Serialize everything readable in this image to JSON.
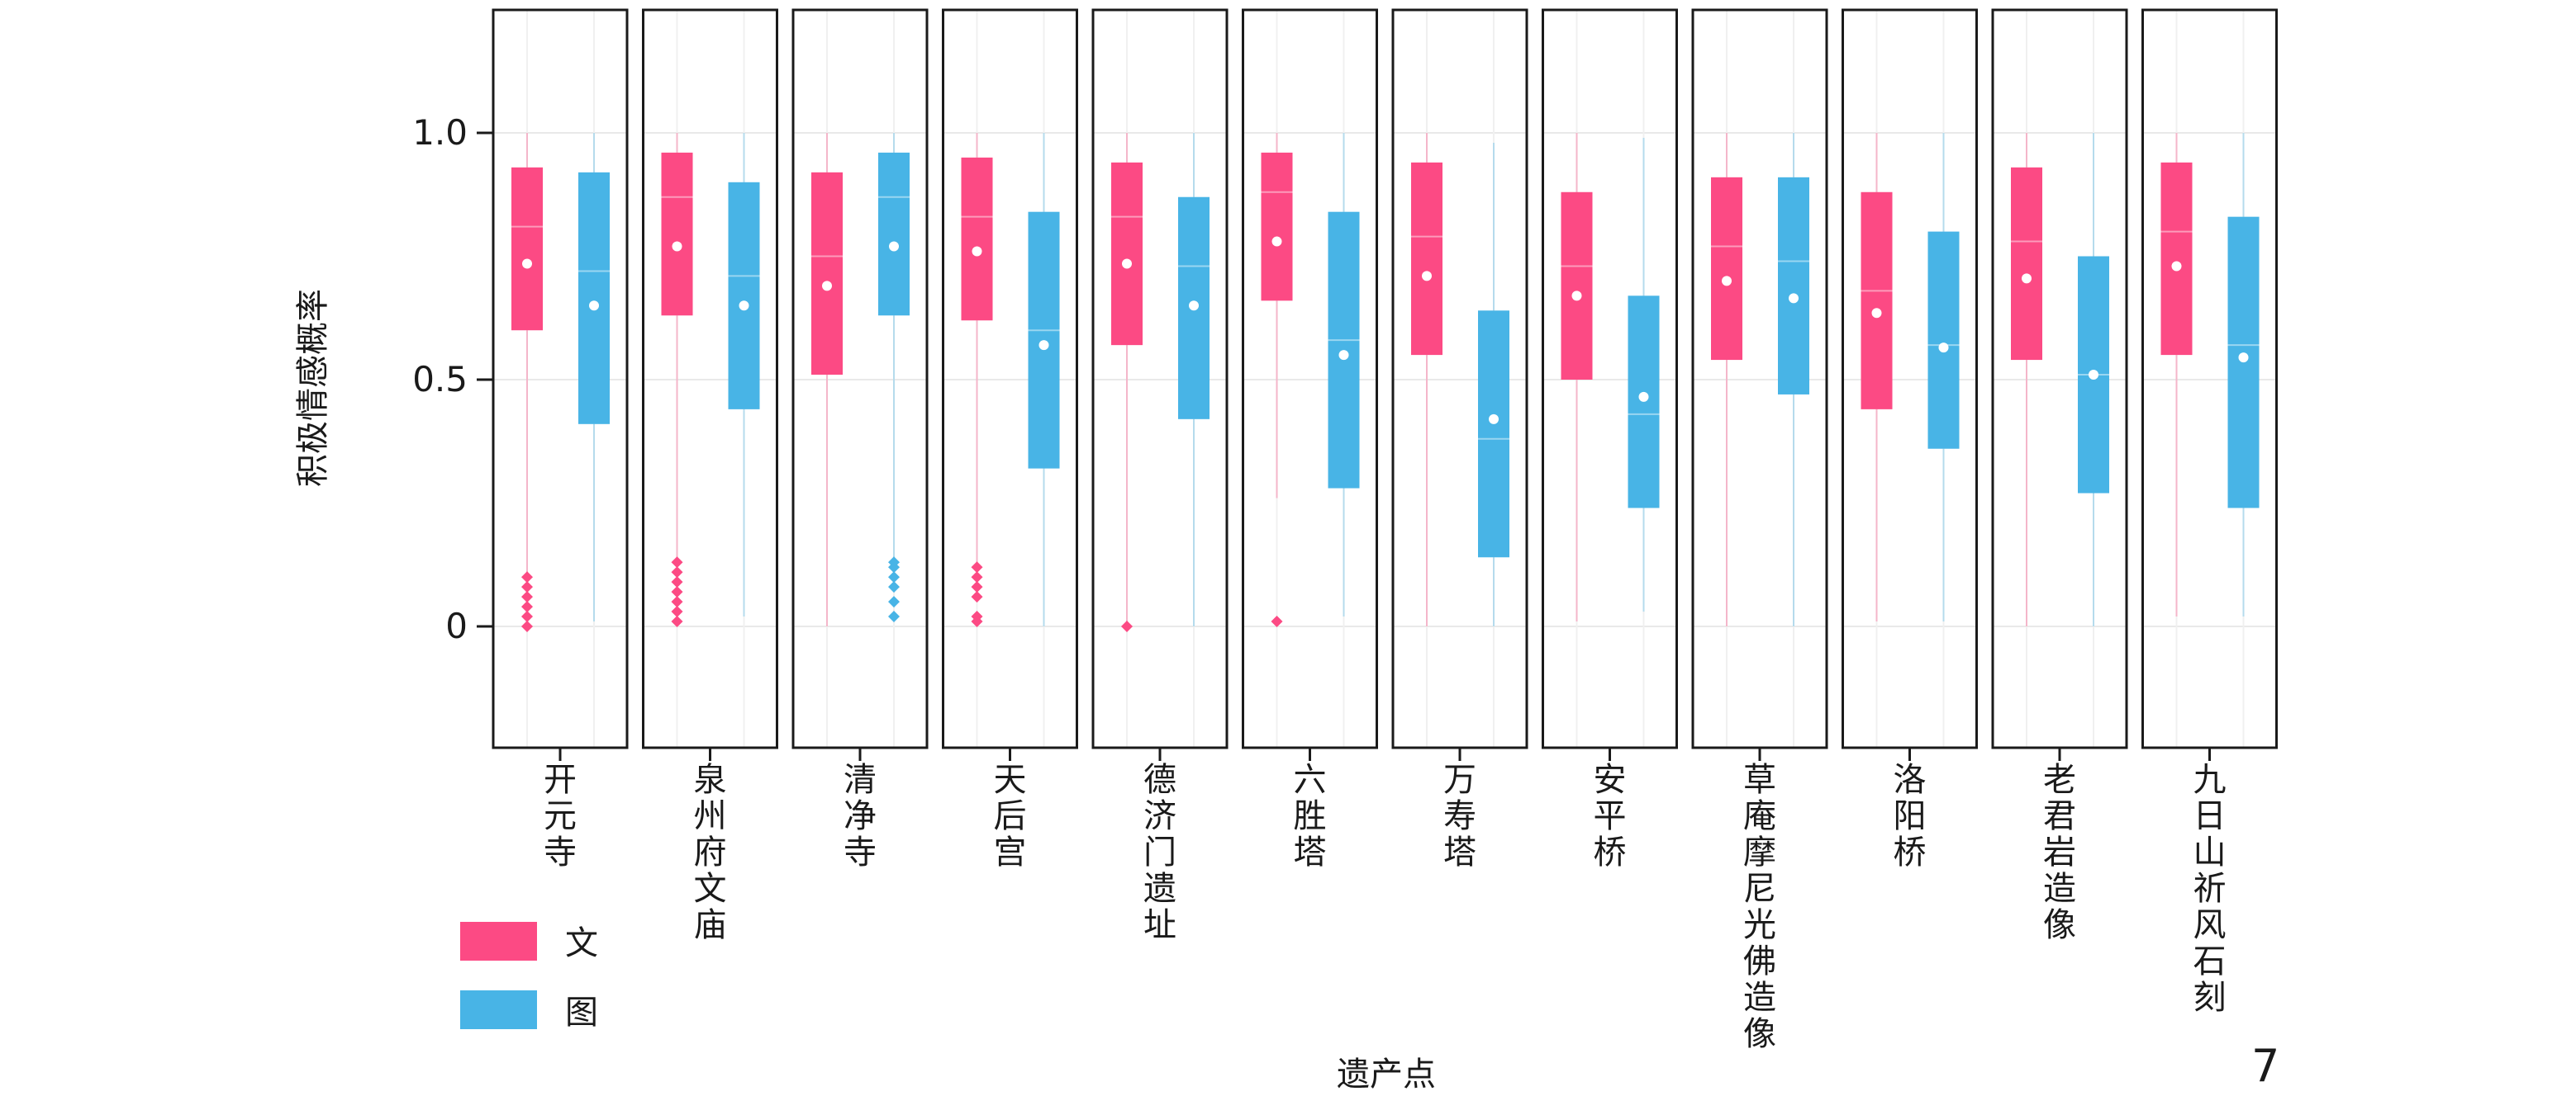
{
  "chart_data": {
    "type": "box",
    "ylabel": "积极情感概率",
    "xlabel": "遗产点",
    "ylim": [
      -0.25,
      1.25
    ],
    "yticks": [
      {
        "value": 0,
        "label": "0"
      },
      {
        "value": 0.5,
        "label": "0.5"
      },
      {
        "value": 1.0,
        "label": "1.0"
      }
    ],
    "grid": true,
    "legend_position": "bottom-left",
    "series": [
      {
        "name": "文",
        "color": "#fc4a84"
      },
      {
        "name": "图",
        "color": "#48b4e6"
      }
    ],
    "categories": [
      {
        "name": "开元寺",
        "wen": {
          "whisker_low": 0.11,
          "q1": 0.6,
          "median": 0.81,
          "q3": 0.93,
          "whisker_high": 1.0,
          "mean": 0.735,
          "outliers": [
            0.0,
            0.02,
            0.04,
            0.06,
            0.08,
            0.1
          ]
        },
        "tu": {
          "whisker_low": 0.01,
          "q1": 0.41,
          "median": 0.72,
          "q3": 0.92,
          "whisker_high": 1.0,
          "mean": 0.65,
          "outliers": []
        }
      },
      {
        "name": "泉州府文庙",
        "wen": {
          "whisker_low": 0.14,
          "q1": 0.63,
          "median": 0.87,
          "q3": 0.96,
          "whisker_high": 1.0,
          "mean": 0.77,
          "outliers": [
            0.01,
            0.03,
            0.05,
            0.07,
            0.09,
            0.11,
            0.13
          ]
        },
        "tu": {
          "whisker_low": 0.02,
          "q1": 0.44,
          "median": 0.71,
          "q3": 0.9,
          "whisker_high": 1.0,
          "mean": 0.65,
          "outliers": []
        }
      },
      {
        "name": "清净寺",
        "wen": {
          "whisker_low": 0.0,
          "q1": 0.51,
          "median": 0.75,
          "q3": 0.92,
          "whisker_high": 1.0,
          "mean": 0.69,
          "outliers": []
        },
        "tu": {
          "whisker_low": 0.14,
          "q1": 0.63,
          "median": 0.87,
          "q3": 0.96,
          "whisker_high": 1.0,
          "mean": 0.77,
          "outliers": [
            0.02,
            0.05,
            0.08,
            0.1,
            0.12,
            0.13
          ]
        }
      },
      {
        "name": "天后宫",
        "wen": {
          "whisker_low": 0.13,
          "q1": 0.62,
          "median": 0.83,
          "q3": 0.95,
          "whisker_high": 1.0,
          "mean": 0.76,
          "outliers": [
            0.01,
            0.02,
            0.06,
            0.08,
            0.1,
            0.12
          ]
        },
        "tu": {
          "whisker_low": 0.0,
          "q1": 0.32,
          "median": 0.6,
          "q3": 0.84,
          "whisker_high": 1.0,
          "mean": 0.57,
          "outliers": []
        }
      },
      {
        "name": "德济门遗址",
        "wen": {
          "whisker_low": 0.01,
          "q1": 0.57,
          "median": 0.83,
          "q3": 0.94,
          "whisker_high": 1.0,
          "mean": 0.735,
          "outliers": [
            0.0
          ]
        },
        "tu": {
          "whisker_low": 0.0,
          "q1": 0.42,
          "median": 0.73,
          "q3": 0.87,
          "whisker_high": 1.0,
          "mean": 0.65,
          "outliers": []
        }
      },
      {
        "name": "六胜塔",
        "wen": {
          "whisker_low": 0.26,
          "q1": 0.66,
          "median": 0.88,
          "q3": 0.96,
          "whisker_high": 1.0,
          "mean": 0.78,
          "outliers": [
            0.01
          ]
        },
        "tu": {
          "whisker_low": 0.02,
          "q1": 0.28,
          "median": 0.58,
          "q3": 0.84,
          "whisker_high": 1.0,
          "mean": 0.55,
          "outliers": []
        }
      },
      {
        "name": "万寿塔",
        "wen": {
          "whisker_low": 0.0,
          "q1": 0.55,
          "median": 0.79,
          "q3": 0.94,
          "whisker_high": 1.0,
          "mean": 0.71,
          "outliers": []
        },
        "tu": {
          "whisker_low": 0.0,
          "q1": 0.14,
          "median": 0.38,
          "q3": 0.64,
          "whisker_high": 0.98,
          "mean": 0.42,
          "outliers": []
        }
      },
      {
        "name": "安平桥",
        "wen": {
          "whisker_low": 0.01,
          "q1": 0.5,
          "median": 0.73,
          "q3": 0.88,
          "whisker_high": 1.0,
          "mean": 0.67,
          "outliers": []
        },
        "tu": {
          "whisker_low": 0.03,
          "q1": 0.24,
          "median": 0.43,
          "q3": 0.67,
          "whisker_high": 0.99,
          "mean": 0.465,
          "outliers": []
        }
      },
      {
        "name": "草庵摩尼光佛造像",
        "wen": {
          "whisker_low": 0.0,
          "q1": 0.54,
          "median": 0.77,
          "q3": 0.91,
          "whisker_high": 1.0,
          "mean": 0.7,
          "outliers": []
        },
        "tu": {
          "whisker_low": 0.0,
          "q1": 0.47,
          "median": 0.74,
          "q3": 0.91,
          "whisker_high": 1.0,
          "mean": 0.665,
          "outliers": []
        }
      },
      {
        "name": "洛阳桥",
        "wen": {
          "whisker_low": 0.01,
          "q1": 0.44,
          "median": 0.68,
          "q3": 0.88,
          "whisker_high": 1.0,
          "mean": 0.635,
          "outliers": []
        },
        "tu": {
          "whisker_low": 0.01,
          "q1": 0.36,
          "median": 0.57,
          "q3": 0.8,
          "whisker_high": 1.0,
          "mean": 0.565,
          "outliers": []
        }
      },
      {
        "name": "老君岩造像",
        "wen": {
          "whisker_low": 0.0,
          "q1": 0.54,
          "median": 0.78,
          "q3": 0.93,
          "whisker_high": 1.0,
          "mean": 0.705,
          "outliers": []
        },
        "tu": {
          "whisker_low": 0.0,
          "q1": 0.27,
          "median": 0.51,
          "q3": 0.75,
          "whisker_high": 1.0,
          "mean": 0.51,
          "outliers": []
        }
      },
      {
        "name": "九日山祈风石刻",
        "wen": {
          "whisker_low": 0.02,
          "q1": 0.55,
          "median": 0.8,
          "q3": 0.94,
          "whisker_high": 1.0,
          "mean": 0.73,
          "outliers": []
        },
        "tu": {
          "whisker_low": 0.02,
          "q1": 0.24,
          "median": 0.57,
          "q3": 0.83,
          "whisker_high": 1.0,
          "mean": 0.545,
          "outliers": []
        }
      }
    ]
  },
  "page_number": "7"
}
